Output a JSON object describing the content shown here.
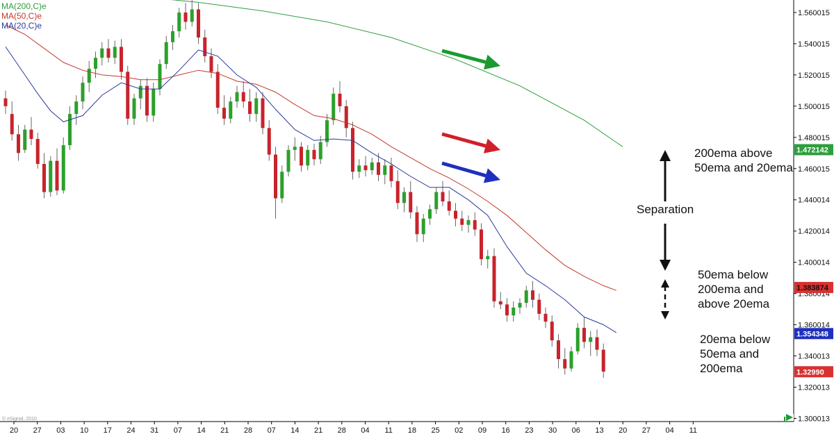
{
  "colors": {
    "ma200": "#2e9e3e",
    "ma50": "#c0392b",
    "ma20": "#2a3a9a",
    "bull": "#2ca02c",
    "bear": "#c8232c",
    "arrow_green": "#1a9a30",
    "arrow_red": "#d0202a",
    "arrow_blue": "#1f2fbf",
    "label_200": "#2e9e3e",
    "label_20": "#1f2fbf",
    "label_50": "#d93030",
    "label_last": "#d93030"
  },
  "legend": [
    {
      "text": "MA(200,C)e",
      "color": "#2e9e3e"
    },
    {
      "text": "MA(50,C)e",
      "color": "#c0392b"
    },
    {
      "text": "MA(20,C)e",
      "color": "#2a3a9a"
    }
  ],
  "watermark": "© eSignal, 2010",
  "annotations": {
    "a200": [
      "200ema above",
      "50ema and 20ema"
    ],
    "separation": "Separation",
    "a50": [
      "50ema below",
      "200ema and",
      "above 20ema"
    ],
    "a20": [
      "20ema below",
      "50ema and",
      "200ema"
    ]
  },
  "chart_data": {
    "type": "candlestick",
    "title": "",
    "xlabel": "",
    "ylabel": "",
    "ylim": [
      1.298,
      1.568
    ],
    "y_ticks": [
      "1.560015",
      "1.540015",
      "1.520015",
      "1.500015",
      "1.480015",
      "1.460015",
      "1.440014",
      "1.420014",
      "1.400014",
      "1.380014",
      "1.360014",
      "1.340013",
      "1.320013",
      "1.300013"
    ],
    "x_ticks": [
      "20",
      "27",
      "03",
      "10",
      "17",
      "24",
      "31",
      "07",
      "14",
      "21",
      "28",
      "07",
      "14",
      "21",
      "28",
      "04",
      "11",
      "18",
      "25",
      "02",
      "09",
      "16",
      "23",
      "30",
      "06",
      "13",
      "20",
      "27",
      "04",
      "11"
    ],
    "price_labels": [
      {
        "name": "MA(200,C)e",
        "value": "1.472142"
      },
      {
        "name": "MA(20,C)e",
        "value": "1.354348"
      },
      {
        "name": "MA(50,C)e",
        "value": "1.383874"
      },
      {
        "name": "last",
        "value": "1.32990"
      }
    ],
    "candles": [
      [
        1.505,
        1.51,
        1.495,
        1.5
      ],
      [
        1.495,
        1.503,
        1.478,
        1.482
      ],
      [
        1.482,
        1.488,
        1.465,
        1.47
      ],
      [
        1.472,
        1.488,
        1.47,
        1.485
      ],
      [
        1.485,
        1.493,
        1.475,
        1.479
      ],
      [
        1.479,
        1.483,
        1.46,
        1.463
      ],
      [
        1.463,
        1.47,
        1.441,
        1.445
      ],
      [
        1.445,
        1.468,
        1.442,
        1.465
      ],
      [
        1.465,
        1.473,
        1.443,
        1.446
      ],
      [
        1.446,
        1.48,
        1.444,
        1.475
      ],
      [
        1.475,
        1.5,
        1.472,
        1.495
      ],
      [
        1.495,
        1.507,
        1.488,
        1.503
      ],
      [
        1.503,
        1.519,
        1.498,
        1.515
      ],
      [
        1.515,
        1.529,
        1.509,
        1.524
      ],
      [
        1.524,
        1.535,
        1.518,
        1.531
      ],
      [
        1.531,
        1.541,
        1.526,
        1.537
      ],
      [
        1.537,
        1.543,
        1.528,
        1.531
      ],
      [
        1.531,
        1.542,
        1.527,
        1.538
      ],
      [
        1.538,
        1.543,
        1.517,
        1.522
      ],
      [
        1.522,
        1.526,
        1.488,
        1.492
      ],
      [
        1.492,
        1.508,
        1.488,
        1.505
      ],
      [
        1.505,
        1.517,
        1.498,
        1.513
      ],
      [
        1.513,
        1.518,
        1.49,
        1.494
      ],
      [
        1.494,
        1.515,
        1.49,
        1.511
      ],
      [
        1.511,
        1.53,
        1.507,
        1.527
      ],
      [
        1.527,
        1.545,
        1.524,
        1.541
      ],
      [
        1.541,
        1.552,
        1.536,
        1.548
      ],
      [
        1.548,
        1.563,
        1.544,
        1.56
      ],
      [
        1.56,
        1.566,
        1.549,
        1.554
      ],
      [
        1.554,
        1.568,
        1.551,
        1.562
      ],
      [
        1.562,
        1.566,
        1.54,
        1.544
      ],
      [
        1.544,
        1.549,
        1.528,
        1.532
      ],
      [
        1.532,
        1.537,
        1.518,
        1.522
      ],
      [
        1.522,
        1.527,
        1.495,
        1.499
      ],
      [
        1.499,
        1.507,
        1.488,
        1.492
      ],
      [
        1.492,
        1.506,
        1.489,
        1.503
      ],
      [
        1.503,
        1.513,
        1.499,
        1.509
      ],
      [
        1.509,
        1.516,
        1.499,
        1.503
      ],
      [
        1.503,
        1.511,
        1.49,
        1.495
      ],
      [
        1.495,
        1.509,
        1.49,
        1.505
      ],
      [
        1.505,
        1.509,
        1.482,
        1.486
      ],
      [
        1.486,
        1.491,
        1.465,
        1.469
      ],
      [
        1.469,
        1.474,
        1.428,
        1.441
      ],
      [
        1.441,
        1.462,
        1.438,
        1.458
      ],
      [
        1.458,
        1.475,
        1.455,
        1.472
      ],
      [
        1.472,
        1.48,
        1.465,
        1.474
      ],
      [
        1.474,
        1.477,
        1.458,
        1.462
      ],
      [
        1.462,
        1.475,
        1.459,
        1.472
      ],
      [
        1.472,
        1.476,
        1.462,
        1.466
      ],
      [
        1.466,
        1.481,
        1.463,
        1.477
      ],
      [
        1.477,
        1.495,
        1.474,
        1.491
      ],
      [
        1.491,
        1.512,
        1.488,
        1.508
      ],
      [
        1.508,
        1.516,
        1.496,
        1.5
      ],
      [
        1.5,
        1.504,
        1.48,
        1.486
      ],
      [
        1.486,
        1.49,
        1.453,
        1.458
      ],
      [
        1.458,
        1.466,
        1.454,
        1.462
      ],
      [
        1.462,
        1.468,
        1.455,
        1.459
      ],
      [
        1.459,
        1.467,
        1.456,
        1.464
      ],
      [
        1.464,
        1.47,
        1.452,
        1.456
      ],
      [
        1.456,
        1.466,
        1.45,
        1.462
      ],
      [
        1.462,
        1.467,
        1.448,
        1.452
      ],
      [
        1.452,
        1.459,
        1.434,
        1.438
      ],
      [
        1.438,
        1.448,
        1.432,
        1.445
      ],
      [
        1.445,
        1.452,
        1.428,
        1.432
      ],
      [
        1.432,
        1.436,
        1.413,
        1.418
      ],
      [
        1.418,
        1.431,
        1.413,
        1.428
      ],
      [
        1.428,
        1.437,
        1.424,
        1.434
      ],
      [
        1.434,
        1.448,
        1.431,
        1.445
      ],
      [
        1.445,
        1.452,
        1.436,
        1.439
      ],
      [
        1.439,
        1.446,
        1.43,
        1.433
      ],
      [
        1.433,
        1.438,
        1.423,
        1.428
      ],
      [
        1.428,
        1.433,
        1.42,
        1.424
      ],
      [
        1.424,
        1.43,
        1.419,
        1.427
      ],
      [
        1.427,
        1.432,
        1.417,
        1.421
      ],
      [
        1.421,
        1.425,
        1.398,
        1.402
      ],
      [
        1.402,
        1.408,
        1.396,
        1.404
      ],
      [
        1.404,
        1.409,
        1.371,
        1.375
      ],
      [
        1.375,
        1.381,
        1.37,
        1.373
      ],
      [
        1.373,
        1.377,
        1.362,
        1.366
      ],
      [
        1.366,
        1.375,
        1.362,
        1.371
      ],
      [
        1.371,
        1.377,
        1.367,
        1.374
      ],
      [
        1.374,
        1.385,
        1.371,
        1.382
      ],
      [
        1.382,
        1.388,
        1.371,
        1.376
      ],
      [
        1.376,
        1.38,
        1.363,
        1.367
      ],
      [
        1.367,
        1.371,
        1.358,
        1.362
      ],
      [
        1.362,
        1.366,
        1.346,
        1.35
      ],
      [
        1.35,
        1.354,
        1.332,
        1.338
      ],
      [
        1.338,
        1.345,
        1.328,
        1.332
      ],
      [
        1.332,
        1.346,
        1.33,
        1.343
      ],
      [
        1.343,
        1.361,
        1.341,
        1.358
      ],
      [
        1.358,
        1.365,
        1.345,
        1.349
      ],
      [
        1.349,
        1.356,
        1.34,
        1.352
      ],
      [
        1.352,
        1.357,
        1.34,
        1.344
      ],
      [
        1.344,
        1.348,
        1.326,
        1.33
      ]
    ],
    "series": [
      {
        "name": "MA(200,C)e",
        "values": [
          [
            0,
            1.576
          ],
          [
            10,
            1.5735
          ],
          [
            20,
            1.5705
          ],
          [
            30,
            1.5665
          ],
          [
            40,
            1.561
          ],
          [
            50,
            1.554
          ],
          [
            60,
            1.544
          ],
          [
            70,
            1.53
          ],
          [
            80,
            1.513
          ],
          [
            90,
            1.491
          ],
          [
            96,
            1.474
          ]
        ]
      },
      {
        "name": "MA(50,C)e",
        "values": [
          [
            0,
            1.552
          ],
          [
            3,
            1.546
          ],
          [
            6,
            1.537
          ],
          [
            9,
            1.528
          ],
          [
            12,
            1.523
          ],
          [
            15,
            1.52
          ],
          [
            18,
            1.519
          ],
          [
            21,
            1.517
          ],
          [
            24,
            1.517
          ],
          [
            27,
            1.52
          ],
          [
            30,
            1.523
          ],
          [
            33,
            1.521
          ],
          [
            36,
            1.516
          ],
          [
            39,
            1.514
          ],
          [
            42,
            1.509
          ],
          [
            45,
            1.501
          ],
          [
            48,
            1.494
          ],
          [
            51,
            1.492
          ],
          [
            54,
            1.488
          ],
          [
            57,
            1.482
          ],
          [
            60,
            1.474
          ],
          [
            63,
            1.467
          ],
          [
            66,
            1.46
          ],
          [
            69,
            1.454
          ],
          [
            72,
            1.447
          ],
          [
            75,
            1.439
          ],
          [
            78,
            1.43
          ],
          [
            81,
            1.419
          ],
          [
            84,
            1.408
          ],
          [
            87,
            1.398
          ],
          [
            90,
            1.391
          ],
          [
            93,
            1.385
          ],
          [
            95,
            1.382
          ]
        ]
      },
      {
        "name": "MA(20,C)e",
        "values": [
          [
            0,
            1.538
          ],
          [
            3,
            1.52
          ],
          [
            5,
            1.508
          ],
          [
            7,
            1.497
          ],
          [
            9,
            1.49
          ],
          [
            12,
            1.494
          ],
          [
            15,
            1.507
          ],
          [
            18,
            1.515
          ],
          [
            21,
            1.511
          ],
          [
            24,
            1.511
          ],
          [
            27,
            1.523
          ],
          [
            30,
            1.536
          ],
          [
            33,
            1.532
          ],
          [
            36,
            1.52
          ],
          [
            39,
            1.512
          ],
          [
            42,
            1.498
          ],
          [
            45,
            1.485
          ],
          [
            48,
            1.478
          ],
          [
            51,
            1.479
          ],
          [
            54,
            1.478
          ],
          [
            57,
            1.47
          ],
          [
            60,
            1.463
          ],
          [
            63,
            1.455
          ],
          [
            66,
            1.448
          ],
          [
            69,
            1.448
          ],
          [
            72,
            1.44
          ],
          [
            75,
            1.43
          ],
          [
            78,
            1.41
          ],
          [
            81,
            1.393
          ],
          [
            84,
            1.385
          ],
          [
            87,
            1.376
          ],
          [
            90,
            1.365
          ],
          [
            93,
            1.36
          ],
          [
            95,
            1.355
          ]
        ]
      }
    ]
  }
}
